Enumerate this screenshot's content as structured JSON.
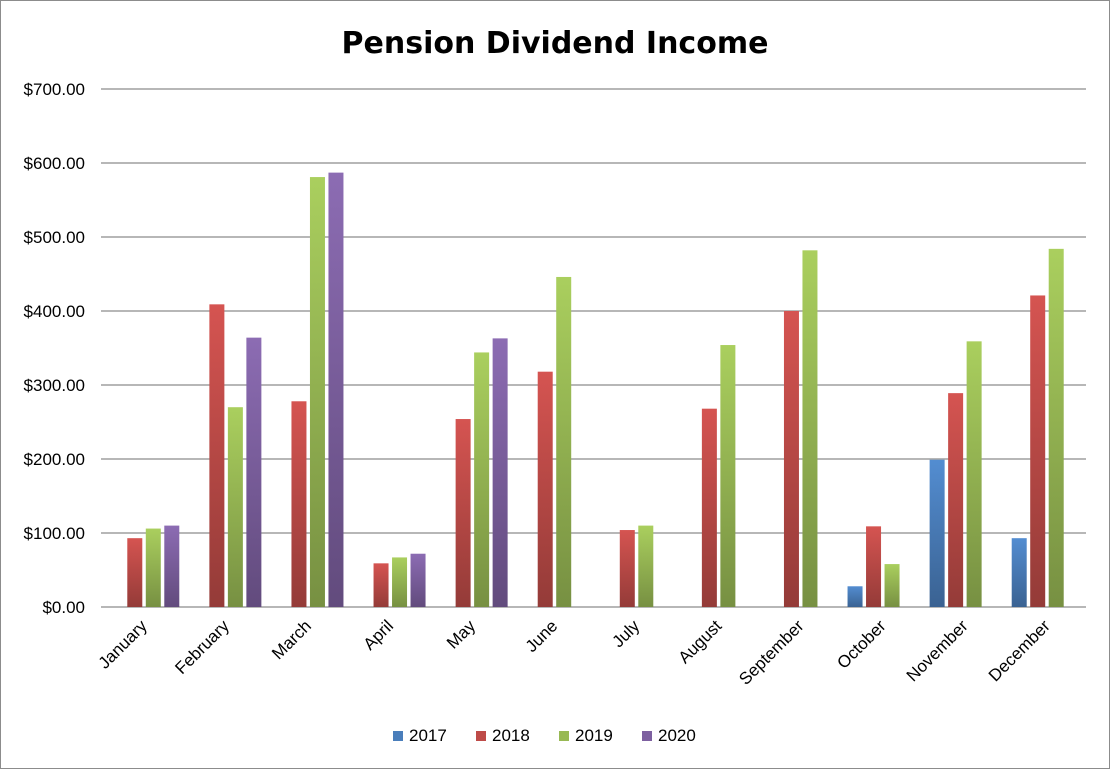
{
  "chart_data": {
    "type": "bar",
    "title": "Pension Dividend Income",
    "categories": [
      "January",
      "February",
      "March",
      "April",
      "May",
      "June",
      "July",
      "August",
      "September",
      "October",
      "November",
      "December"
    ],
    "series": [
      {
        "name": "2017",
        "color": "#4a7ebb",
        "values": [
          null,
          null,
          null,
          null,
          null,
          null,
          null,
          null,
          null,
          28,
          199,
          93
        ]
      },
      {
        "name": "2018",
        "color": "#be4b48",
        "values": [
          93,
          409,
          278,
          59,
          254,
          318,
          104,
          268,
          400,
          109,
          289,
          421
        ]
      },
      {
        "name": "2019",
        "color": "#98b954",
        "values": [
          106,
          270,
          581,
          67,
          344,
          446,
          110,
          354,
          482,
          58,
          359,
          484
        ]
      },
      {
        "name": "2020",
        "color": "#7d60a0",
        "values": [
          110,
          364,
          587,
          72,
          363,
          null,
          null,
          null,
          null,
          null,
          null,
          null
        ]
      }
    ],
    "ylim": [
      0,
      700
    ],
    "yticks": [
      0,
      100,
      200,
      300,
      400,
      500,
      600,
      700
    ],
    "ytick_labels": [
      "$0.00",
      "$100.00",
      "$200.00",
      "$300.00",
      "$400.00",
      "$500.00",
      "$600.00",
      "$700.00"
    ],
    "xlabel": "",
    "ylabel": "",
    "grid": true,
    "legend_position": "bottom"
  }
}
